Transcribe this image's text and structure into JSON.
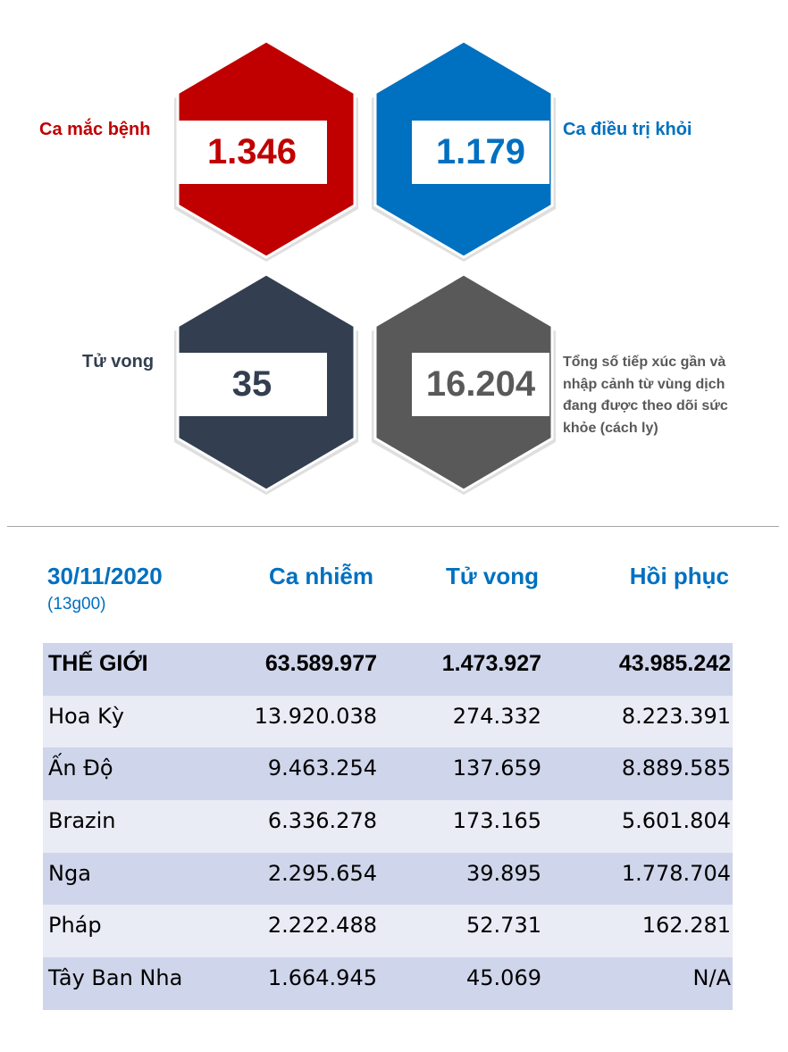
{
  "stats": {
    "cases": {
      "label": "Ca mắc bệnh",
      "value": "1.346",
      "color": "#c00000"
    },
    "recovered": {
      "label": "Ca điều trị khỏi",
      "value": "1.179",
      "color": "#0070c0"
    },
    "deaths": {
      "label": "Tử vong",
      "value": "35",
      "color": "#333f50"
    },
    "monitored": {
      "label": "Tổng số tiếp xúc gần và nhập cảnh từ vùng dịch đang được theo dõi sức khỏe (cách ly)",
      "value": "16.204",
      "color": "#595959"
    }
  },
  "table": {
    "date": "30/11/2020",
    "time": "(13g00)",
    "headers": {
      "cases": "Ca nhiễm",
      "deaths": "Tử vong",
      "recovered": "Hồi phục"
    },
    "rows": [
      {
        "name": "THẾ GIỚI",
        "cases": "63.589.977",
        "deaths": "1.473.927",
        "recovered": "43.985.242"
      },
      {
        "name": "Hoa Kỳ",
        "cases": "13.920.038",
        "deaths": "274.332",
        "recovered": "8.223.391"
      },
      {
        "name": "Ấn Độ",
        "cases": "9.463.254",
        "deaths": "137.659",
        "recovered": "8.889.585"
      },
      {
        "name": "Brazin",
        "cases": "6.336.278",
        "deaths": "173.165",
        "recovered": "5.601.804"
      },
      {
        "name": "Nga",
        "cases": "2.295.654",
        "deaths": "39.895",
        "recovered": "1.778.704"
      },
      {
        "name": "Pháp",
        "cases": "2.222.488",
        "deaths": "52.731",
        "recovered": "162.281"
      },
      {
        "name": "Tây Ban Nha",
        "cases": "1.664.945",
        "deaths": "45.069",
        "recovered": "N/A"
      }
    ]
  }
}
